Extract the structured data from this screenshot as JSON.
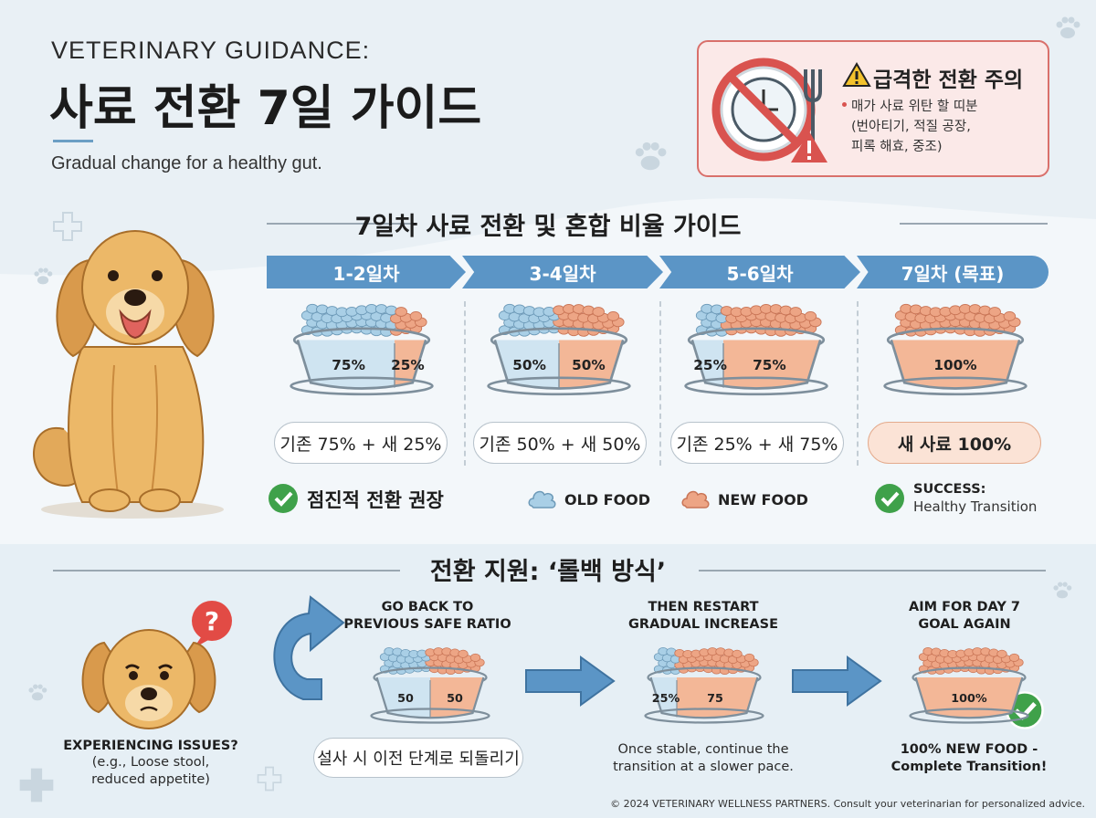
{
  "header": {
    "overline": "VETERINARY GUIDANCE:",
    "title": "사료 전환 7일 가이드",
    "tagline": "Gradual change for a healthy gut."
  },
  "warning": {
    "title": "급격한 전환 주의",
    "text": "매가 사료 위탄 할 띠분\n(번아티기, 적질 공장,\n피록 해효, 중조)"
  },
  "guide": {
    "title": "7일차 사료 전환 및 혼합 비율 가이드",
    "steps": [
      {
        "label": "1-2일차",
        "old": 75,
        "new": 25,
        "old_text": "75%",
        "new_text": "25%",
        "ratio": "기존 75% + 새 25%"
      },
      {
        "label": "3-4일차",
        "old": 50,
        "new": 50,
        "old_text": "50%",
        "new_text": "50%",
        "ratio": "기존 50% + 새 50%"
      },
      {
        "label": "5-6일차",
        "old": 25,
        "new": 75,
        "old_text": "25%",
        "new_text": "75%",
        "ratio": "기존 25% + 새 75%"
      },
      {
        "label": "7일차 (목표)",
        "old": 0,
        "new": 100,
        "old_text": "",
        "new_text": "100%",
        "ratio": "새 사료 100%"
      }
    ],
    "recommend": "점진적 전환 권장",
    "legend_old": "OLD FOOD",
    "legend_new": "NEW FOOD",
    "success_title": "SUCCESS:",
    "success_sub": "Healthy Transition"
  },
  "rollback": {
    "title": "전환 지원: ‘롤백 방식’",
    "issue_title": "EXPERIENCING ISSUES?",
    "issue_sub": "(e.g., Loose stool,\nreduced appetite)",
    "step1_title": "GO BACK TO\nPREVIOUS SAFE RATIO",
    "step1_old": "50",
    "step1_new": "50",
    "step1_pill": "설사 시 이전 단계로 되돌리기",
    "step2_title": "THEN RESTART\nGRADUAL INCREASE",
    "step2_old": "25%",
    "step2_new": "75",
    "step2_sub": "Once stable, continue the\ntransition at a slower pace.",
    "step3_title": "AIM FOR DAY 7\nGOAL AGAIN",
    "step3_new": "100%",
    "step3_sub": "100% NEW FOOD -\nComplete Transition!"
  },
  "footer": "© 2024 VETERINARY WELLNESS PARTNERS. Consult your veterinarian for personalized advice.",
  "colors": {
    "accent_blue": "#5b95c6",
    "old_food": "#a9cfe6",
    "new_food": "#eda585",
    "warning_red": "#d9534f",
    "success_green": "#3fa14a"
  }
}
